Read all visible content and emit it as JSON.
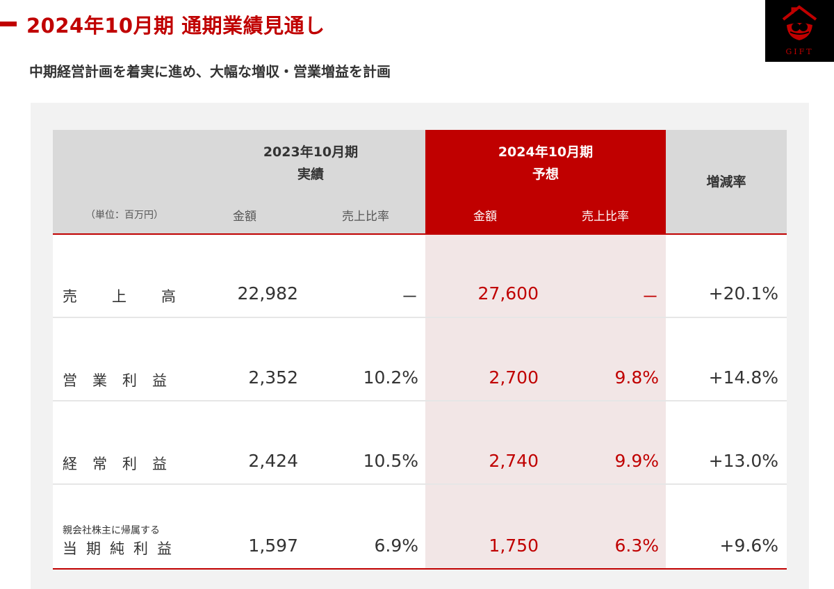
{
  "header": {
    "title": "2024年10月期 通期業績見通し",
    "subtitle": "中期経営計画を着実に進め、大幅な増収・営業増益を計画"
  },
  "logo": {
    "text": "GIFT",
    "icon": "gift-logo-icon",
    "color": "#c00000"
  },
  "colors": {
    "accent": "#c00000",
    "header_gray": "#d9d9d9",
    "forecast_bg": "#f2e6e6"
  },
  "table": {
    "unit_label": "（単位：百万円）",
    "period_2023": {
      "line1": "2023年10月期",
      "line2": "実績"
    },
    "period_2024": {
      "line1": "2024年10月期",
      "line2": "予想"
    },
    "change_header": "増減率",
    "sub_amount": "金額",
    "sub_ratio": "売上比率",
    "rows": [
      {
        "label": "売上高",
        "label_small": "",
        "amount_2023": "22,982",
        "ratio_2023": "－",
        "amount_2024": "27,600",
        "ratio_2024": "－",
        "change": "+20.1%"
      },
      {
        "label": "営業利益",
        "label_small": "",
        "amount_2023": "2,352",
        "ratio_2023": "10.2%",
        "amount_2024": "2,700",
        "ratio_2024": "9.8%",
        "change": "+14.8%"
      },
      {
        "label": "経常利益",
        "label_small": "",
        "amount_2023": "2,424",
        "ratio_2023": "10.5%",
        "amount_2024": "2,740",
        "ratio_2024": "9.9%",
        "change": "+13.0%"
      },
      {
        "label": "当期純利益",
        "label_small": "親会社株主に帰属する",
        "amount_2023": "1,597",
        "ratio_2023": "6.9%",
        "amount_2024": "1,750",
        "ratio_2024": "6.3%",
        "change": "+9.6%"
      }
    ]
  }
}
